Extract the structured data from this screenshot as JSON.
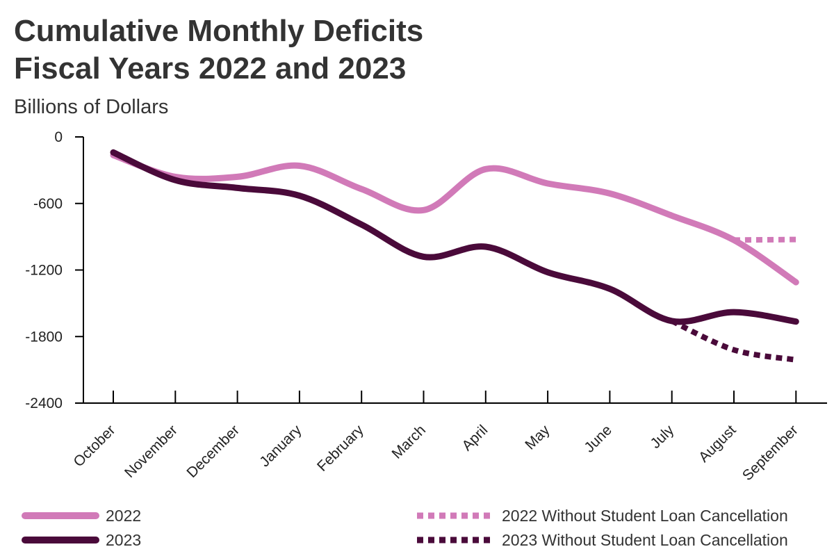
{
  "title_line1": "Cumulative Monthly Deficits",
  "title_line2": "Fiscal Years 2022 and 2023",
  "subtitle": "Billions of Dollars",
  "chart_data": {
    "type": "line",
    "title": "Cumulative Monthly Deficits Fiscal Years 2022 and 2023",
    "ylabel": "Billions of Dollars",
    "xlabel": "",
    "categories": [
      "October",
      "November",
      "December",
      "January",
      "February",
      "March",
      "April",
      "May",
      "June",
      "July",
      "August",
      "September"
    ],
    "ylim": [
      -2400,
      0
    ],
    "yticks": [
      0,
      -600,
      -1200,
      -1800,
      -2400
    ],
    "grid": false,
    "legend_position": "bottom",
    "series": [
      {
        "name": "2022",
        "color": "#d17ab8",
        "style": "solid",
        "values": [
          -165,
          -360,
          -360,
          -260,
          -470,
          -660,
          -290,
          -420,
          -510,
          -710,
          -930,
          -1310
        ]
      },
      {
        "name": "2023",
        "color": "#4a0a3a",
        "style": "solid",
        "values": [
          -140,
          -390,
          -460,
          -530,
          -790,
          -1080,
          -990,
          -1220,
          -1370,
          -1660,
          -1580,
          -1665
        ]
      },
      {
        "name": "2022 Without Student Loan Cancellation",
        "color": "#d17ab8",
        "style": "dotted",
        "x_start_index": 10,
        "values": [
          null,
          null,
          null,
          null,
          null,
          null,
          null,
          null,
          null,
          null,
          -930,
          -925
        ]
      },
      {
        "name": "2023 Without Student Loan Cancellation",
        "color": "#4a0a3a",
        "style": "dotted",
        "x_start_index": 9,
        "values": [
          null,
          null,
          null,
          null,
          null,
          null,
          null,
          null,
          null,
          -1660,
          -1920,
          -2010
        ]
      }
    ]
  }
}
